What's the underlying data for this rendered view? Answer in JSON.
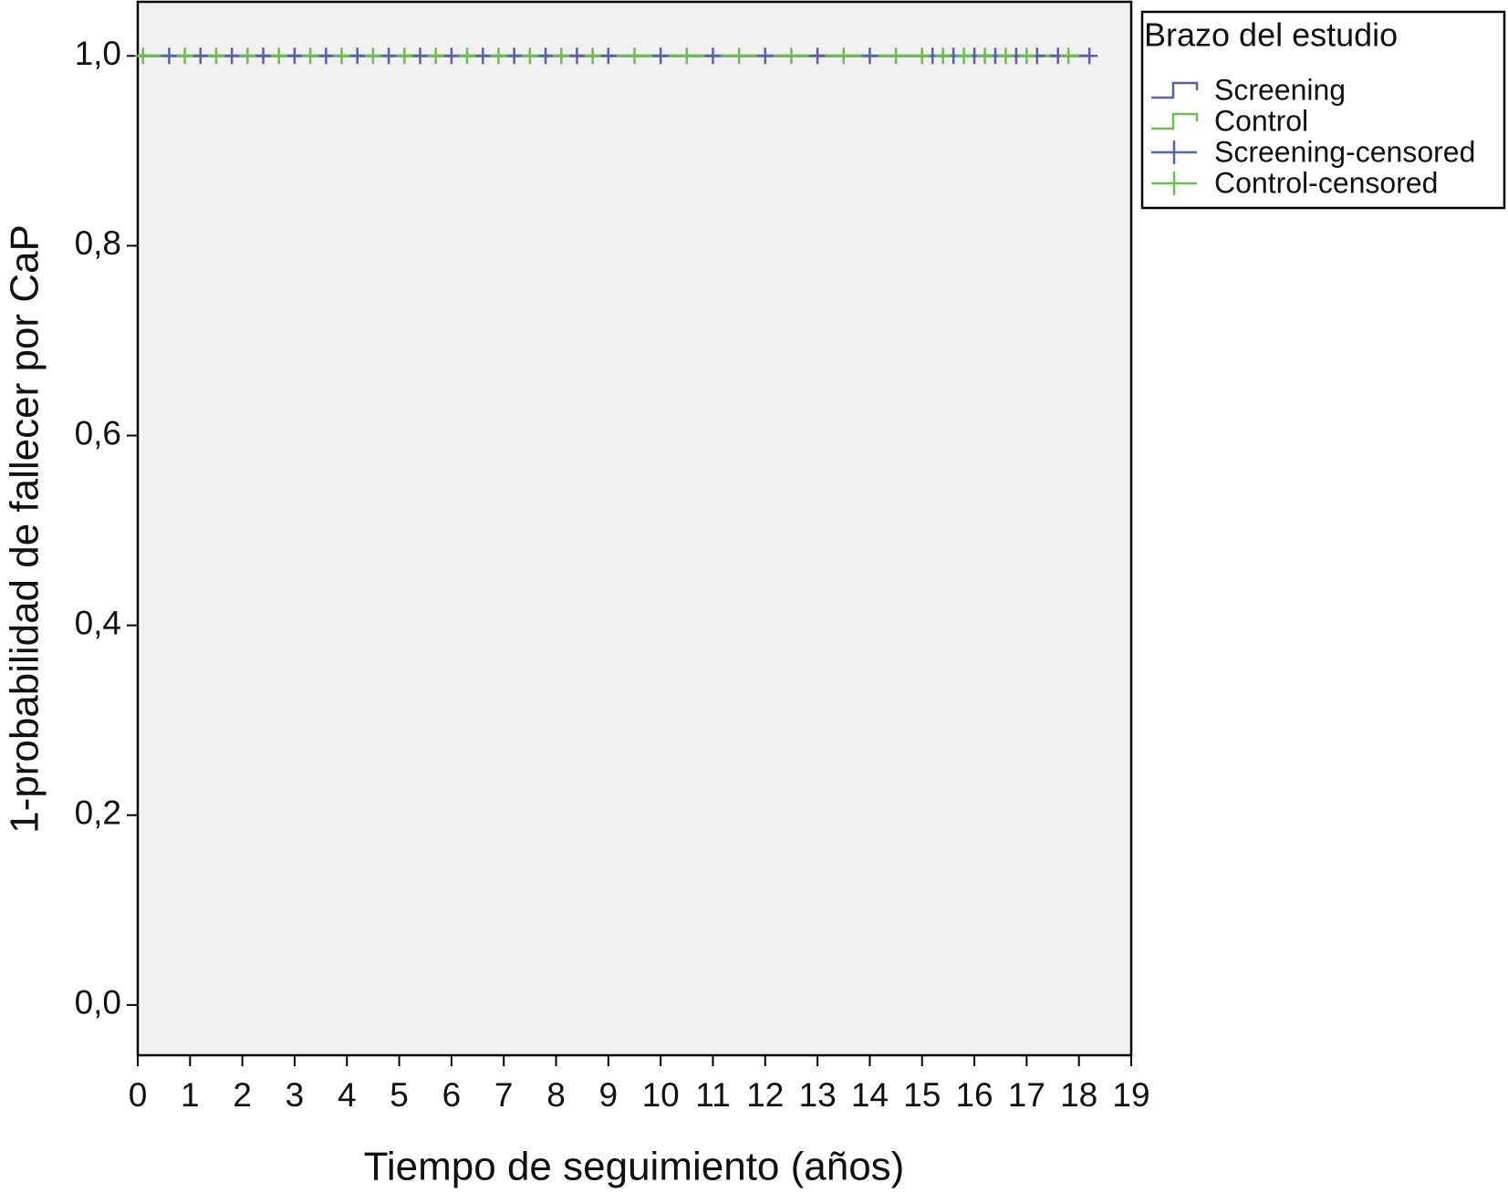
{
  "chart_data": {
    "type": "km",
    "xlabel": "Tiempo de seguimiento (años)",
    "ylabel": "1-probabilidad de fallecer por CaP",
    "legend_title": "Brazo del estudio",
    "legend_position": "outside-top-right",
    "xlim": [
      0,
      19
    ],
    "xticks": [
      0,
      1,
      2,
      3,
      4,
      5,
      6,
      7,
      8,
      9,
      10,
      11,
      12,
      13,
      14,
      15,
      16,
      17,
      18,
      19
    ],
    "ylim": [
      -0.053,
      1.057
    ],
    "yticks": [
      {
        "value": 0,
        "label": "0,0"
      },
      {
        "value": 0.2,
        "label": "0,2"
      },
      {
        "value": 0.4,
        "label": "0,4"
      },
      {
        "value": 0.6,
        "label": "0,6"
      },
      {
        "value": 0.8,
        "label": "0,8"
      },
      {
        "value": 1,
        "label": "1,0"
      }
    ],
    "series": [
      {
        "name": "Screening",
        "color": "#5a5fb0",
        "kind": "step",
        "x": [
          0,
          18.2
        ],
        "values": [
          1,
          1
        ]
      },
      {
        "name": "Control",
        "color": "#6cbf4f",
        "kind": "step",
        "x": [
          0,
          18.0
        ],
        "values": [
          1,
          1
        ]
      },
      {
        "name": "Screening-censored",
        "color": "#5a5fb0",
        "kind": "censored",
        "x": [
          0.6,
          1.2,
          1.8,
          2.4,
          3.0,
          3.6,
          4.2,
          4.8,
          5.4,
          6.0,
          6.6,
          7.2,
          7.8,
          8.4,
          9.0,
          10.0,
          11.0,
          12.0,
          13.0,
          14.0,
          15.2,
          15.6,
          16.0,
          16.4,
          16.8,
          17.2,
          17.6,
          18.2
        ],
        "values": [
          1,
          1,
          1,
          1,
          1,
          1,
          1,
          1,
          1,
          1,
          1,
          1,
          1,
          1,
          1,
          1,
          1,
          1,
          1,
          1,
          1,
          1,
          1,
          1,
          1,
          1,
          1,
          1
        ]
      },
      {
        "name": "Control-censored",
        "color": "#6cbf4f",
        "kind": "censored",
        "x": [
          0.1,
          0.9,
          1.5,
          2.1,
          2.7,
          3.3,
          3.9,
          4.5,
          5.1,
          5.7,
          6.3,
          6.9,
          7.5,
          8.1,
          8.7,
          9.5,
          10.5,
          11.5,
          12.5,
          13.5,
          14.5,
          15.0,
          15.4,
          15.8,
          16.2,
          16.6,
          17.0,
          17.8
        ],
        "values": [
          1,
          1,
          1,
          1,
          1,
          1,
          1,
          1,
          1,
          1,
          1,
          1,
          1,
          1,
          1,
          1,
          1,
          1,
          1,
          1,
          1,
          1,
          1,
          1,
          1,
          1,
          1,
          1
        ]
      }
    ]
  }
}
